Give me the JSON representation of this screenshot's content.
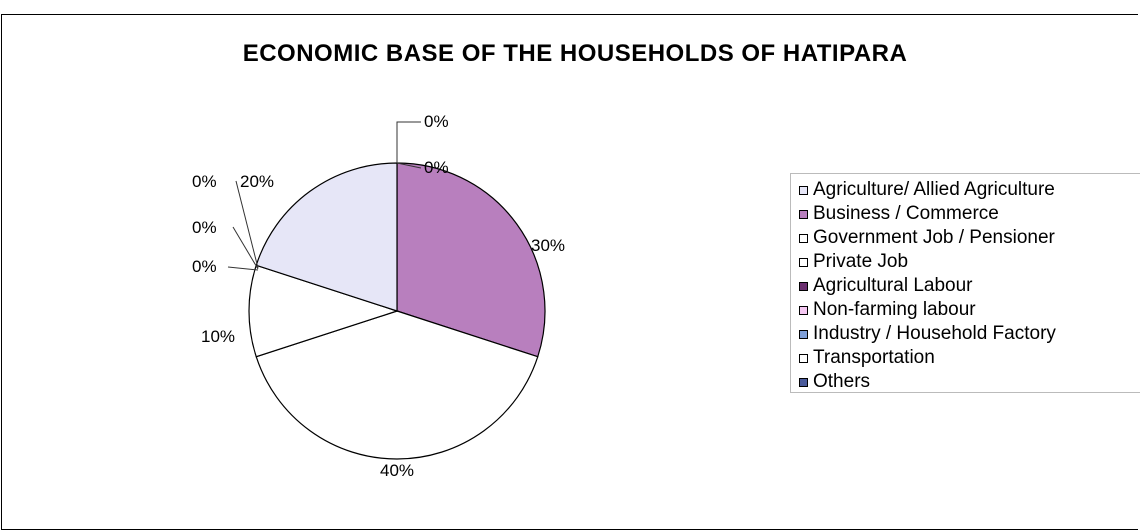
{
  "chart_data": {
    "type": "pie",
    "title": "ECONOMIC BASE OF THE HOUSEHOLDS OF HATIPARA",
    "categories": [
      "Agriculture/ Allied Agriculture",
      "Business / Commerce",
      "Government Job / Pensioner",
      "Private Job",
      "Agricultural Labour",
      "Non-farming labour",
      "Industry / Household Factory",
      "Transportation",
      "Others"
    ],
    "values": [
      20,
      30,
      40,
      10,
      0,
      0,
      0,
      0,
      0
    ],
    "data_labels": [
      "20%",
      "30%",
      "40%",
      "10%",
      "0%",
      "0%",
      "0%",
      "0%",
      "0%"
    ],
    "colors": [
      "#e6e6f7",
      "#b87fbe",
      "#ffffff",
      "#ffffff",
      "#6b2f6f",
      "#f5c8f2",
      "#7f9fd8",
      "#ffffff",
      "#4a5a9a"
    ],
    "legend_placement": "right"
  }
}
